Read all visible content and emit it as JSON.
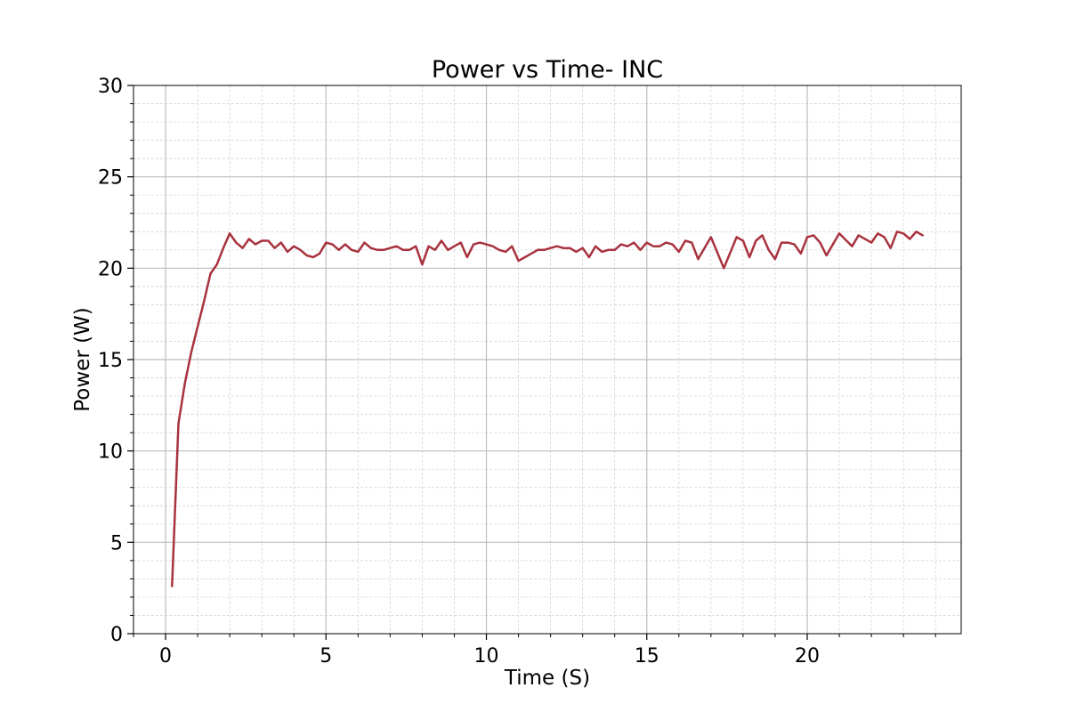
{
  "chart_data": {
    "type": "line",
    "title": "Power vs Time- INC",
    "xlabel": "Time (S)",
    "ylabel": "Power (W)",
    "xlim": [
      -1.0,
      24.8
    ],
    "ylim": [
      0,
      30
    ],
    "xticks": [
      0,
      5,
      10,
      15,
      20
    ],
    "yticks": [
      0,
      5,
      10,
      15,
      20,
      25,
      30
    ],
    "grid": "major and minor",
    "series": [
      {
        "color": "#a8323e",
        "x": [
          0.2,
          0.4,
          0.6,
          0.8,
          1.0,
          1.2,
          1.4,
          1.6,
          1.8,
          2.0,
          2.2,
          2.4,
          2.6,
          2.8,
          3.0,
          3.2,
          3.4,
          3.6,
          3.8,
          4.0,
          4.2,
          4.4,
          4.6,
          4.8,
          5.0,
          5.2,
          5.4,
          5.6,
          5.8,
          6.0,
          6.2,
          6.4,
          6.6,
          6.8,
          7.0,
          7.2,
          7.4,
          7.6,
          7.8,
          8.0,
          8.2,
          8.4,
          8.6,
          8.8,
          9.0,
          9.2,
          9.4,
          9.6,
          9.8,
          10.0,
          10.2,
          10.4,
          10.6,
          10.8,
          11.0,
          11.2,
          11.4,
          11.6,
          11.8,
          12.0,
          12.2,
          12.4,
          12.6,
          12.8,
          13.0,
          13.2,
          13.4,
          13.6,
          13.8,
          14.0,
          14.2,
          14.4,
          14.6,
          14.8,
          15.0,
          15.2,
          15.4,
          15.6,
          15.8,
          16.0,
          16.2,
          16.4,
          16.6,
          17.0,
          17.4,
          17.8,
          18.0,
          18.2,
          18.4,
          18.6,
          18.8,
          19.0,
          19.2,
          19.4,
          19.6,
          19.8,
          20.0,
          20.2,
          20.4,
          20.6,
          21.0,
          21.4,
          21.6,
          22.0,
          22.2,
          22.4,
          22.6,
          22.8,
          23.0,
          23.2,
          23.4,
          23.6
        ],
        "y": [
          2.6,
          11.5,
          13.7,
          15.4,
          16.8,
          18.2,
          19.7,
          20.2,
          21.1,
          21.9,
          21.4,
          21.1,
          21.6,
          21.3,
          21.5,
          21.5,
          21.1,
          21.4,
          20.9,
          21.2,
          21.0,
          20.7,
          20.6,
          20.8,
          21.4,
          21.3,
          21.0,
          21.3,
          21.0,
          20.9,
          21.4,
          21.1,
          21.0,
          21.0,
          21.1,
          21.2,
          21.0,
          21.0,
          21.2,
          20.2,
          21.2,
          21.0,
          21.5,
          21.0,
          21.2,
          21.4,
          20.6,
          21.3,
          21.4,
          21.3,
          21.2,
          21.0,
          20.9,
          21.2,
          20.4,
          20.6,
          20.8,
          21.0,
          21.0,
          21.1,
          21.2,
          21.1,
          21.1,
          20.9,
          21.1,
          20.6,
          21.2,
          20.9,
          21.0,
          21.0,
          21.3,
          21.2,
          21.4,
          21.0,
          21.4,
          21.2,
          21.2,
          21.4,
          21.3,
          20.9,
          21.5,
          21.4,
          20.5,
          21.7,
          20.0,
          21.7,
          21.5,
          20.6,
          21.5,
          21.8,
          21.0,
          20.5,
          21.4,
          21.4,
          21.3,
          20.8,
          21.7,
          21.8,
          21.4,
          20.7,
          21.9,
          21.2,
          21.8,
          21.4,
          21.9,
          21.7,
          21.1,
          22.0,
          21.9,
          21.6,
          22.0,
          21.8
        ]
      }
    ]
  }
}
